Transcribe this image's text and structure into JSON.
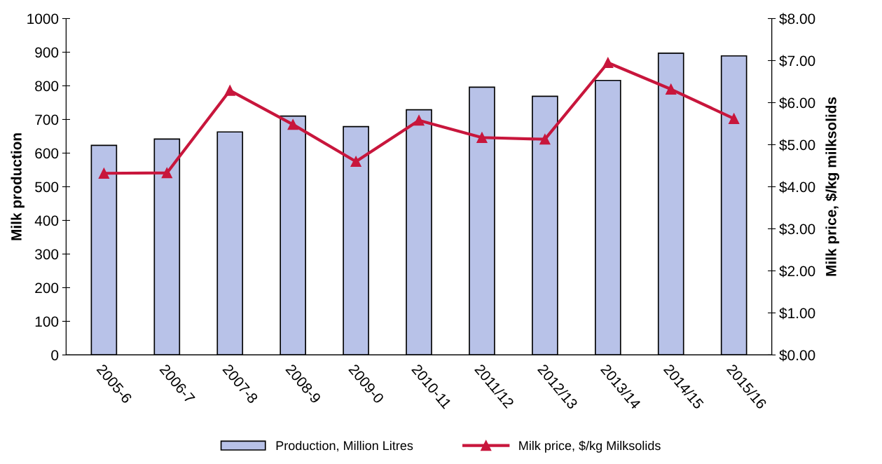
{
  "chart_data": {
    "type": "bar",
    "ylabel": "Milk production",
    "y2label": "Milk price, $/kg milksolids",
    "categories": [
      "2005-6",
      "2006-7",
      "2007-8",
      "2008-9",
      "2009-0",
      "2010-11",
      "2011/12",
      "2012/13",
      "2013/14",
      "2014/15",
      "2015/16"
    ],
    "series": [
      {
        "name": "Production, Million Litres",
        "color": "#b8c2e8",
        "values": [
          623,
          642,
          663,
          710,
          679,
          729,
          796,
          769,
          816,
          897,
          889
        ]
      },
      {
        "name": "Milk price, $/kg Milksolids",
        "color": "#c8163c",
        "type": "line",
        "axis": "y2",
        "marker": "triangle",
        "values": [
          4.32,
          4.33,
          6.29,
          5.48,
          4.6,
          5.58,
          5.17,
          5.13,
          6.95,
          6.32,
          5.62
        ]
      }
    ],
    "ylim": [
      0,
      1000
    ],
    "yticks": [
      0,
      100,
      200,
      300,
      400,
      500,
      600,
      700,
      800,
      900,
      1000
    ],
    "y2lim": [
      0,
      8
    ],
    "y2ticks": [
      {
        "value": 0,
        "label": "$0.00"
      },
      {
        "value": 1,
        "label": "$1.00"
      },
      {
        "value": 2,
        "label": "$2.00"
      },
      {
        "value": 3,
        "label": "$3.00"
      },
      {
        "value": 4,
        "label": "$4.00"
      },
      {
        "value": 5,
        "label": "$5.00"
      },
      {
        "value": 6,
        "label": "$6.00"
      },
      {
        "value": 7,
        "label": "$7.00"
      },
      {
        "value": 8,
        "label": "$8.00"
      }
    ],
    "grid": false,
    "legend": "bottom"
  }
}
